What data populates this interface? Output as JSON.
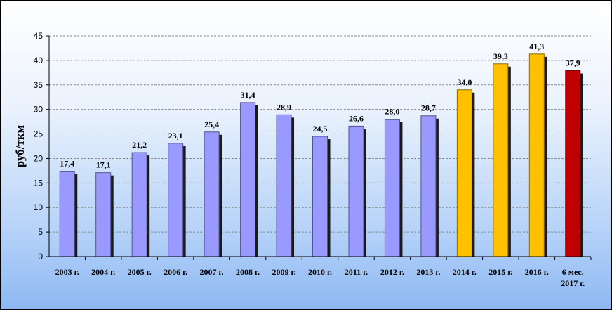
{
  "chart_data": {
    "type": "bar",
    "ylabel": "руб/ткм",
    "ylim": [
      0,
      45
    ],
    "ytick_step": 5,
    "grid": true,
    "categories": [
      "2003 г.",
      "2004 г.",
      "2005 г.",
      "2006 г.",
      "2007 г.",
      "2008 г.",
      "2009 г.",
      "2010 г.",
      "2011 г.",
      "2012 г.",
      "2013 г.",
      "2014 г.",
      "2015 г.",
      "2016 г.",
      "6 мес. 2017 г."
    ],
    "values": [
      17.4,
      17.1,
      21.2,
      23.1,
      25.4,
      31.4,
      28.9,
      24.5,
      26.6,
      28.0,
      28.7,
      34.0,
      39.3,
      41.3,
      37.9
    ],
    "data_labels": [
      "17,4",
      "17,1",
      "21,2",
      "23,1",
      "25,4",
      "31,4",
      "28,9",
      "24,5",
      "26,6",
      "28,0",
      "28,7",
      "34,0",
      "39,3",
      "41,3",
      "37,9"
    ],
    "bar_colors": [
      "#9999ff",
      "#9999ff",
      "#9999ff",
      "#9999ff",
      "#9999ff",
      "#9999ff",
      "#9999ff",
      "#9999ff",
      "#9999ff",
      "#9999ff",
      "#9999ff",
      "#ffc000",
      "#ffc000",
      "#ffc000",
      "#c00000"
    ]
  }
}
